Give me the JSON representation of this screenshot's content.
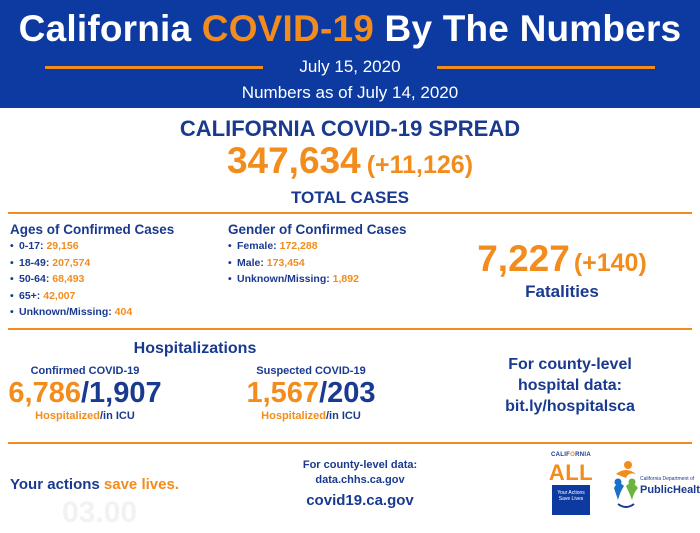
{
  "header": {
    "title_pre": "California ",
    "title_accent": "COVID-19",
    "title_post": " By The Numbers",
    "date": "July 15, 2020",
    "as_of": "Numbers as of July 14, 2020"
  },
  "spread": {
    "title": "CALIFORNIA COVID-19 SPREAD",
    "total": "347,634",
    "change": "(+11,126)",
    "label": "TOTAL CASES"
  },
  "ages": {
    "title": "Ages of Confirmed Cases",
    "items": [
      {
        "label": "0-17:",
        "value": "29,156"
      },
      {
        "label": "18-49:",
        "value": "207,574"
      },
      {
        "label": "50-64:",
        "value": "68,493"
      },
      {
        "label": "65+:",
        "value": "42,007"
      },
      {
        "label": "Unknown/Missing:",
        "value": "404"
      }
    ]
  },
  "gender": {
    "title": "Gender of Confirmed Cases",
    "items": [
      {
        "label": "Female:",
        "value": "172,288"
      },
      {
        "label": "Male:",
        "value": "173,454"
      },
      {
        "label": "Unknown/Missing:",
        "value": "1,892"
      }
    ]
  },
  "fatalities": {
    "value": "7,227",
    "change": "(+140)",
    "label": "Fatalities"
  },
  "hospitalizations": {
    "title": "Hospitalizations",
    "confirmed": {
      "title": "Confirmed COVID-19",
      "hospitalized": "6,786",
      "icu": "1,907",
      "hosp_label": "Hospitalized",
      "icu_label": "/in ICU"
    },
    "suspected": {
      "title": "Suspected COVID-19",
      "hospitalized": "1,567",
      "icu": "203",
      "hosp_label": "Hospitalized",
      "icu_label": "/in ICU"
    }
  },
  "county_hospital": {
    "line1": "For county-level",
    "line2": "hospital data:",
    "link": "bit.ly/hospitalsca"
  },
  "footer": {
    "actions_pre": "Your actions ",
    "actions_accent": "save lives.",
    "ghost_text": "03.00",
    "county_data_label": "For county-level data:",
    "county_data_url": "data.chhs.ca.gov",
    "site": "covid19.ca.gov"
  },
  "logos": {
    "caall_top_pre": "CALIF",
    "caall_top_accent": "O",
    "caall_top_post": "RNIA",
    "caall_main": "ALL",
    "caall_box_line1": "Your Actions",
    "caall_box_line2": "Save Lives",
    "cdph_small": "California Department of",
    "cdph_name": "PublicHealth"
  },
  "colors": {
    "navy": "#0d3aa0",
    "orange": "#f28c1c",
    "text_blue": "#1a3a8f"
  }
}
